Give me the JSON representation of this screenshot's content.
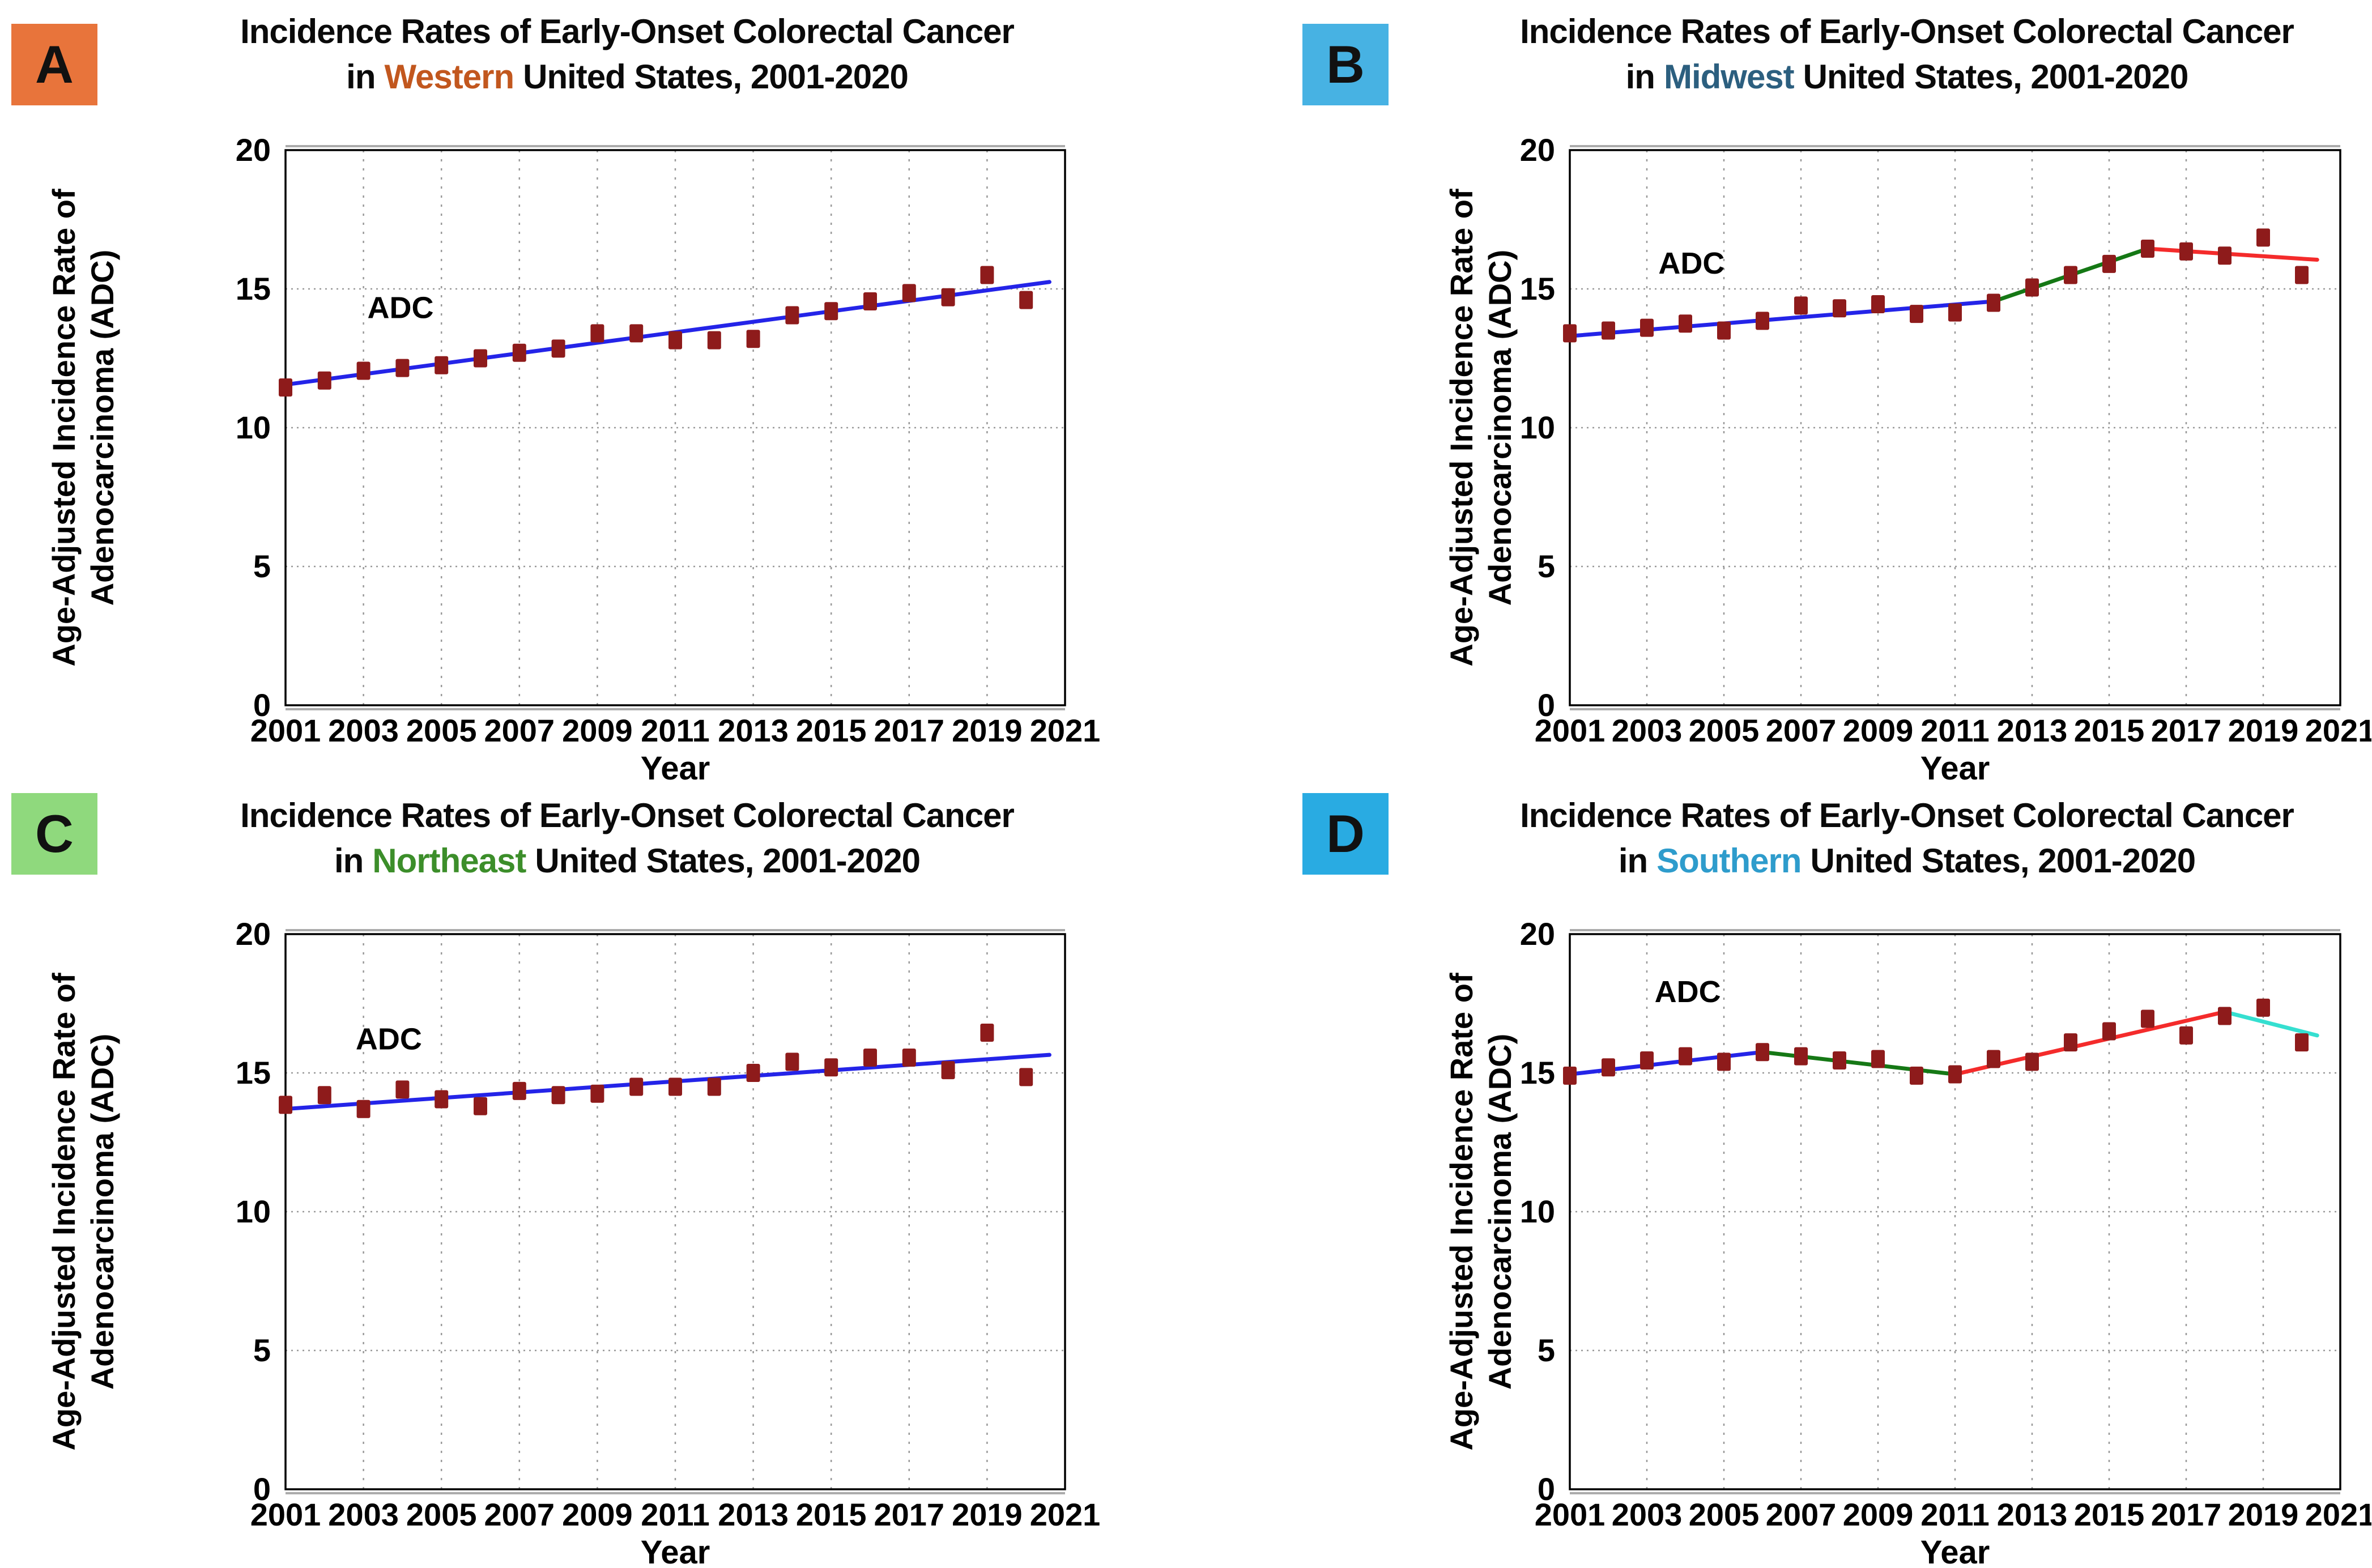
{
  "figure": {
    "background": "#FFFFFF",
    "panels": [
      {
        "label": "A",
        "label_box_color": "#E8743B",
        "title_line1": "Incidence Rates of Early-Onset Colorectal Cancer",
        "title_in": "in",
        "region": "Western",
        "region_color": "#C2571E",
        "title_rest": "United States, 2001-2020",
        "chart_index": 0
      },
      {
        "label": "B",
        "label_box_color": "#47B2E3",
        "title_line1": "Incidence Rates of Early-Onset Colorectal Cancer",
        "title_in": "in",
        "region": "Midwest",
        "region_color": "#2C5F7F",
        "title_rest": "United States, 2001-2020",
        "chart_index": 1
      },
      {
        "label": "C",
        "label_box_color": "#8FD97D",
        "title_line1": "Incidence Rates of Early-Onset Colorectal Cancer",
        "title_in": "in",
        "region": "Northeast",
        "region_color": "#3C8E2A",
        "title_rest": "United States, 2001-2020",
        "chart_index": 2
      },
      {
        "label": "D",
        "label_box_color": "#29ABE2",
        "title_line1": "Incidence Rates of Early-Onset Colorectal Cancer",
        "title_in": "in",
        "region": "Southern",
        "region_color": "#2E9CCC",
        "title_rest": "United States, 2001-2020",
        "chart_index": 3
      }
    ]
  },
  "colors": {
    "trend_blue": "#2424E8",
    "trend_green": "#157815",
    "trend_red": "#F42B2B",
    "trend_cyan": "#35DFD0",
    "marker": "#8E1B1B",
    "axis": "#000000",
    "gridline": "#999999",
    "frame_shadow": "#ABABAB",
    "title_text": "#0A0A0A"
  },
  "chart_data": [
    {
      "type": "scatter",
      "region": "Western",
      "title": "Incidence Rates of Early-Onset Colorectal Cancer in Western United States, 2001-2020",
      "x": [
        2001,
        2002,
        2003,
        2004,
        2005,
        2006,
        2007,
        2008,
        2009,
        2010,
        2011,
        2012,
        2013,
        2014,
        2015,
        2016,
        2017,
        2018,
        2019,
        2020
      ],
      "series": [
        {
          "name": "ADC",
          "values": [
            11.45,
            11.7,
            12.05,
            12.15,
            12.25,
            12.5,
            12.7,
            12.85,
            13.4,
            13.4,
            13.15,
            13.15,
            13.2,
            14.05,
            14.2,
            14.55,
            14.85,
            14.7,
            15.5,
            14.6
          ]
        }
      ],
      "trend_segments": [
        {
          "color": "blue",
          "x1": 2001,
          "y1": 11.55,
          "x2": 2020.6,
          "y2": 15.25
        }
      ],
      "annotation": {
        "text": "ADC",
        "x": 2003.1,
        "y": 13.95
      },
      "xlabel": "Year",
      "ylabel_lines": [
        "Age-Adjusted Incidence Rate of",
        "Adenocarcinoma (ADC)"
      ],
      "xlim": [
        2001,
        2021
      ],
      "ylim": [
        0,
        20
      ],
      "xticks": [
        2001,
        2003,
        2005,
        2007,
        2009,
        2011,
        2013,
        2015,
        2017,
        2019,
        2021
      ],
      "yticks": [
        0,
        5,
        10,
        15,
        20
      ],
      "grid": true,
      "legend": "none"
    },
    {
      "type": "scatter",
      "region": "Midwest",
      "title": "Incidence Rates of Early-Onset Colorectal Cancer in Midwest United States, 2001-2020",
      "x": [
        2001,
        2002,
        2003,
        2004,
        2005,
        2006,
        2007,
        2008,
        2009,
        2010,
        2011,
        2012,
        2013,
        2014,
        2015,
        2016,
        2017,
        2018,
        2019,
        2020
      ],
      "series": [
        {
          "name": "ADC",
          "values": [
            13.4,
            13.5,
            13.6,
            13.75,
            13.5,
            13.85,
            14.4,
            14.3,
            14.45,
            14.1,
            14.15,
            14.5,
            15.05,
            15.5,
            15.9,
            16.45,
            16.35,
            16.2,
            16.85,
            15.5
          ]
        }
      ],
      "trend_segments": [
        {
          "color": "blue",
          "x1": 2001,
          "y1": 13.3,
          "x2": 2012,
          "y2": 14.55
        },
        {
          "color": "green",
          "x1": 2012,
          "y1": 14.55,
          "x2": 2016,
          "y2": 16.45
        },
        {
          "color": "red",
          "x1": 2016,
          "y1": 16.45,
          "x2": 2020.4,
          "y2": 16.05
        }
      ],
      "annotation": {
        "text": "ADC",
        "x": 2003.3,
        "y": 15.55
      },
      "xlabel": "Year",
      "ylabel_lines": [
        "Age-Adjusted Incidence Rate of",
        "Adenocarcinoma (ADC)"
      ],
      "xlim": [
        2001,
        2021
      ],
      "ylim": [
        0,
        20
      ],
      "xticks": [
        2001,
        2003,
        2005,
        2007,
        2009,
        2011,
        2013,
        2015,
        2017,
        2019,
        2021
      ],
      "yticks": [
        0,
        5,
        10,
        15,
        20
      ],
      "grid": true,
      "legend": "none"
    },
    {
      "type": "scatter",
      "region": "Northeast",
      "title": "Incidence Rates of Early-Onset Colorectal Cancer in Northeast United States, 2001-2020",
      "x": [
        2001,
        2002,
        2003,
        2004,
        2005,
        2006,
        2007,
        2008,
        2009,
        2010,
        2011,
        2012,
        2013,
        2014,
        2015,
        2016,
        2017,
        2018,
        2019,
        2020
      ],
      "series": [
        {
          "name": "ADC",
          "values": [
            13.85,
            14.2,
            13.7,
            14.4,
            14.05,
            13.8,
            14.35,
            14.2,
            14.25,
            14.5,
            14.5,
            14.5,
            15.0,
            15.4,
            15.2,
            15.55,
            15.55,
            15.1,
            16.45,
            14.85
          ]
        }
      ],
      "trend_segments": [
        {
          "color": "blue",
          "x1": 2001,
          "y1": 13.7,
          "x2": 2020.6,
          "y2": 15.65
        }
      ],
      "annotation": {
        "text": "ADC",
        "x": 2002.8,
        "y": 15.85
      },
      "xlabel": "Year",
      "ylabel_lines": [
        "Age-Adjusted Incidence Rate of",
        "Adenocarcinoma (ADC)"
      ],
      "xlim": [
        2001,
        2021
      ],
      "ylim": [
        0,
        20
      ],
      "xticks": [
        2001,
        2003,
        2005,
        2007,
        2009,
        2011,
        2013,
        2015,
        2017,
        2019,
        2021
      ],
      "yticks": [
        0,
        5,
        10,
        15,
        20
      ],
      "grid": true,
      "legend": "none"
    },
    {
      "type": "scatter",
      "region": "Southern",
      "title": "Incidence Rates of Early-Onset Colorectal Cancer in Southern United States, 2001-2020",
      "x": [
        2001,
        2002,
        2003,
        2004,
        2005,
        2006,
        2007,
        2008,
        2009,
        2010,
        2011,
        2012,
        2013,
        2014,
        2015,
        2016,
        2017,
        2018,
        2019,
        2020
      ],
      "series": [
        {
          "name": "ADC",
          "values": [
            14.9,
            15.2,
            15.45,
            15.6,
            15.4,
            15.75,
            15.6,
            15.45,
            15.5,
            14.9,
            14.95,
            15.5,
            15.4,
            16.1,
            16.5,
            16.95,
            16.35,
            17.05,
            17.35,
            16.1
          ]
        }
      ],
      "trend_segments": [
        {
          "color": "blue",
          "x1": 2001,
          "y1": 14.95,
          "x2": 2006,
          "y2": 15.75
        },
        {
          "color": "green",
          "x1": 2006,
          "y1": 15.75,
          "x2": 2011,
          "y2": 14.95
        },
        {
          "color": "red",
          "x1": 2011,
          "y1": 14.95,
          "x2": 2018,
          "y2": 17.2
        },
        {
          "color": "cyan",
          "x1": 2018,
          "y1": 17.2,
          "x2": 2020.4,
          "y2": 16.35
        }
      ],
      "annotation": {
        "text": "ADC",
        "x": 2003.2,
        "y": 17.55
      },
      "xlabel": "Year",
      "ylabel_lines": [
        "Age-Adjusted Incidence Rate of",
        "Adenocarcinoma (ADC)"
      ],
      "xlim": [
        2001,
        2021
      ],
      "ylim": [
        0,
        20
      ],
      "xticks": [
        2001,
        2003,
        2005,
        2007,
        2009,
        2011,
        2013,
        2015,
        2017,
        2019,
        2021
      ],
      "yticks": [
        0,
        5,
        10,
        15,
        20
      ],
      "grid": true,
      "legend": "none"
    }
  ]
}
